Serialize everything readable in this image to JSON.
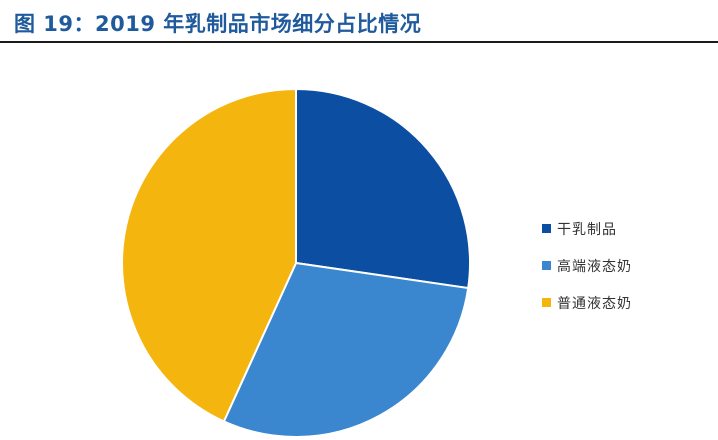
{
  "figure": {
    "title": "图 19：2019 年乳制品市场细分占比情况"
  },
  "chart_data": {
    "type": "pie",
    "title": "",
    "series": [
      {
        "slices": [
          {
            "label": "干乳制品",
            "value": 27.3,
            "color": "#0b4ea2"
          },
          {
            "label": "高端液态奶",
            "value": 29.5,
            "color": "#3a87d0"
          },
          {
            "label": "普通液态奶",
            "value": 43.2,
            "color": "#f5b50f"
          }
        ]
      }
    ],
    "legend_position": "right"
  }
}
